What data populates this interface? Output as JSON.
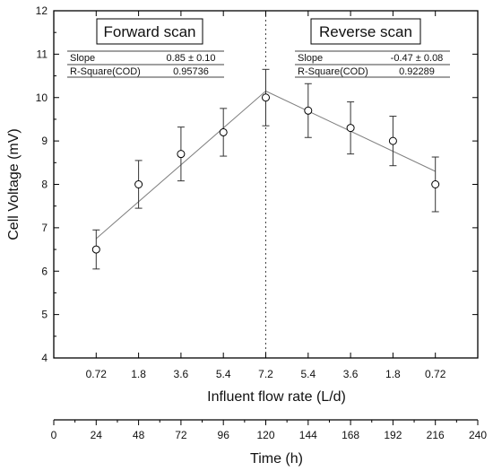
{
  "chart_data": {
    "type": "scatter",
    "xlabel": "Influent flow rate (L/d)",
    "ylabel": "Cell Voltage (mV)",
    "secondary_xlabel": "Time (h)",
    "ylim": [
      4,
      12
    ],
    "yticks": [
      4,
      5,
      6,
      7,
      8,
      9,
      10,
      11,
      12
    ],
    "time_ticks": [
      0,
      24,
      48,
      72,
      96,
      120,
      144,
      168,
      192,
      216,
      240
    ],
    "time_lim": [
      0,
      240
    ],
    "grid": false,
    "categories": [
      "0.72",
      "1.8",
      "3.6",
      "5.4",
      "7.2",
      "5.4",
      "3.6",
      "1.8",
      "0.72"
    ],
    "x_time": [
      24,
      48,
      72,
      96,
      120,
      144,
      168,
      192,
      216
    ],
    "values": [
      6.5,
      8.0,
      8.7,
      9.2,
      10.0,
      9.7,
      9.3,
      9.0,
      8.0
    ],
    "errors": [
      0.45,
      0.55,
      0.62,
      0.55,
      0.65,
      0.62,
      0.6,
      0.57,
      0.63
    ],
    "divider_time": 120,
    "fits": [
      {
        "x_time": [
          24,
          120
        ],
        "y": [
          6.75,
          10.15
        ]
      },
      {
        "x_time": [
          120,
          216
        ],
        "y": [
          10.15,
          8.3
        ]
      }
    ],
    "annotations": [
      {
        "label": "Forward scan",
        "slope_label": "Slope",
        "slope": "0.85 ± 0.10",
        "r2_label": "R-Square(COD)",
        "r2": "0.95736"
      },
      {
        "label": "Reverse scan",
        "slope_label": "Slope",
        "slope": "-0.47 ± 0.08",
        "r2_label": "R-Square(COD)",
        "r2": "0.92289"
      }
    ]
  }
}
